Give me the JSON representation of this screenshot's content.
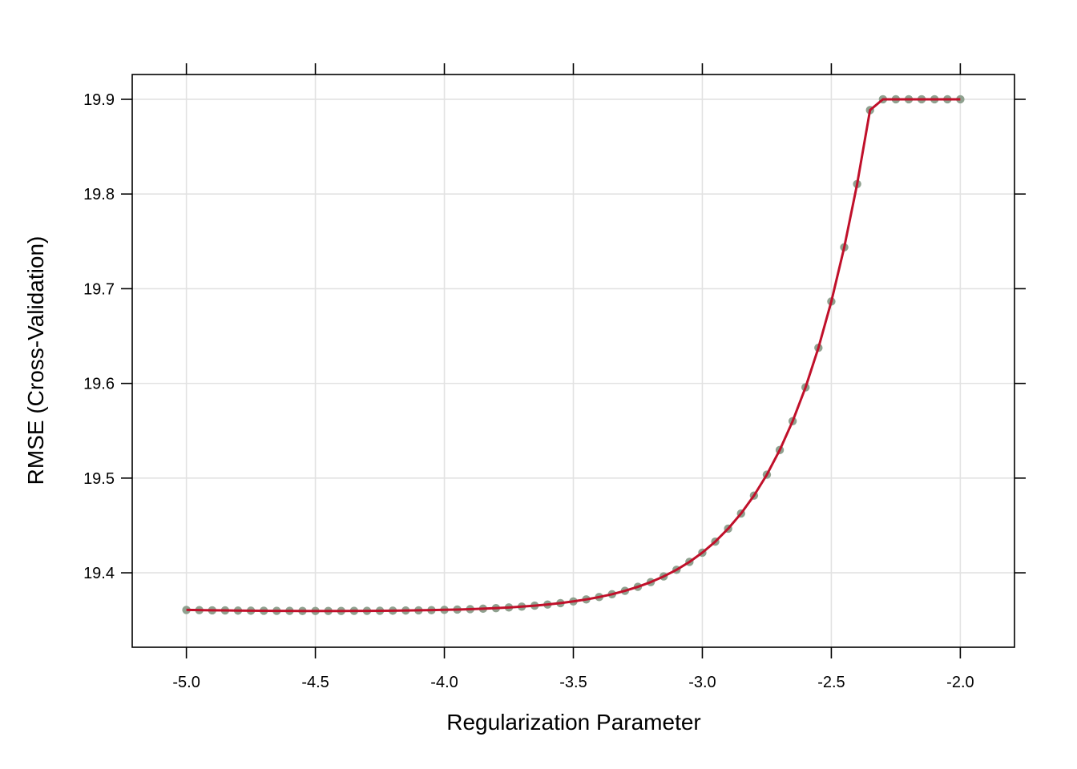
{
  "chart_data": {
    "type": "line",
    "xlabel": "Regularization Parameter",
    "ylabel": "RMSE (Cross-Validation)",
    "xlim": [
      -5.21,
      -1.79
    ],
    "ylim": [
      19.3214,
      19.9262
    ],
    "x_ticks": [
      -5.0,
      -4.5,
      -4.0,
      -3.5,
      -3.0,
      -2.5,
      -2.0
    ],
    "x_tick_labels": [
      "-5.0",
      "-4.5",
      "-4.0",
      "-3.5",
      "-3.0",
      "-2.5",
      "-2.0"
    ],
    "y_ticks": [
      19.4,
      19.5,
      19.6,
      19.7,
      19.8,
      19.9
    ],
    "y_tick_labels": [
      "19.4",
      "19.5",
      "19.6",
      "19.7",
      "19.8",
      "19.9"
    ],
    "grid": true,
    "point_color": "#8fa18f",
    "line_color": "#c0102a",
    "grid_color": "#e2e2e2",
    "series": [
      {
        "x": [
          -5.0,
          -4.95,
          -4.9,
          -4.85,
          -4.8,
          -4.75,
          -4.7,
          -4.65,
          -4.6,
          -4.55,
          -4.5,
          -4.45,
          -4.4,
          -4.35,
          -4.3,
          -4.25,
          -4.2,
          -4.15,
          -4.1,
          -4.05,
          -4.0,
          -3.95,
          -3.9,
          -3.85,
          -3.8,
          -3.75,
          -3.7,
          -3.65,
          -3.6,
          -3.55,
          -3.5,
          -3.45,
          -3.4,
          -3.35,
          -3.3,
          -3.25,
          -3.2,
          -3.15,
          -3.1,
          -3.05,
          -3.0,
          -2.95,
          -2.9,
          -2.85,
          -2.8,
          -2.75,
          -2.7,
          -2.65,
          -2.6,
          -2.55,
          -2.5,
          -2.45,
          -2.4,
          -2.35,
          -2.3,
          -2.25,
          -2.2,
          -2.15,
          -2.1,
          -2.05,
          -2.0
        ],
        "y": [
          19.3608,
          19.3606,
          19.3604,
          19.3603,
          19.3601,
          19.36,
          19.3599,
          19.3598,
          19.3598,
          19.3597,
          19.3597,
          19.3597,
          19.3597,
          19.3598,
          19.3598,
          19.3599,
          19.36,
          19.3602,
          19.3604,
          19.3606,
          19.3609,
          19.3612,
          19.3616,
          19.3621,
          19.3627,
          19.3634,
          19.3643,
          19.3653,
          19.3665,
          19.368,
          19.3698,
          19.3719,
          19.3744,
          19.3774,
          19.381,
          19.3852,
          19.3902,
          19.3962,
          19.4032,
          19.4115,
          19.4213,
          19.4329,
          19.4466,
          19.4626,
          19.4815,
          19.5036,
          19.5296,
          19.5601,
          19.5958,
          19.6376,
          19.6865,
          19.7437,
          19.8105,
          19.8886,
          19.9,
          19.9,
          19.9,
          19.9,
          19.9,
          19.9,
          19.9
        ]
      }
    ]
  }
}
